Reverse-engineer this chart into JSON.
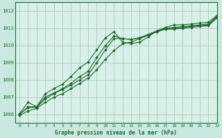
{
  "bg_color": "#c8e8e0",
  "plot_bg_color": "#d8f0e8",
  "grid_color": "#a8ccc4",
  "line_color": "#1a6b2a",
  "xlabel": "Graphe pression niveau de la mer (hPa)",
  "xlim": [
    -0.5,
    23
  ],
  "ylim": [
    1005.5,
    1012.5
  ],
  "yticks": [
    1006,
    1007,
    1008,
    1009,
    1010,
    1011,
    1012
  ],
  "xticks": [
    0,
    1,
    2,
    3,
    4,
    5,
    6,
    7,
    8,
    9,
    10,
    11,
    12,
    13,
    14,
    15,
    16,
    17,
    18,
    19,
    20,
    21,
    22,
    23
  ],
  "line1_x": [
    0,
    1,
    2,
    3,
    4,
    5,
    6,
    7,
    8,
    9,
    10,
    11,
    12,
    13,
    14,
    15,
    16,
    17,
    18,
    19,
    20,
    21,
    22,
    23
  ],
  "line1_y": [
    1006.05,
    1006.7,
    1006.45,
    1007.2,
    1007.5,
    1007.75,
    1008.2,
    1008.7,
    1009.05,
    1009.75,
    1010.45,
    1010.8,
    1010.2,
    1010.1,
    1010.2,
    1010.5,
    1010.85,
    1011.05,
    1011.2,
    1011.2,
    1011.25,
    1011.3,
    1011.35,
    1011.75
  ],
  "line2_x": [
    0,
    1,
    2,
    3,
    4,
    5,
    6,
    7,
    8,
    9,
    10,
    11,
    12,
    13,
    14,
    15,
    16,
    17,
    18,
    19,
    20,
    21,
    22,
    23
  ],
  "line2_y": [
    1006.0,
    1006.45,
    1006.45,
    1007.0,
    1007.25,
    1007.5,
    1007.8,
    1008.2,
    1008.5,
    1009.3,
    1010.0,
    1010.55,
    1010.4,
    1010.35,
    1010.45,
    1010.65,
    1010.85,
    1011.0,
    1011.05,
    1011.1,
    1011.15,
    1011.2,
    1011.25,
    1011.7
  ],
  "line3_x": [
    0,
    1,
    2,
    3,
    4,
    5,
    6,
    7,
    8,
    9,
    10,
    11,
    12,
    13,
    14,
    15,
    16,
    17,
    18,
    19,
    20,
    21,
    22,
    23
  ],
  "line3_y": [
    1006.0,
    1006.4,
    1006.4,
    1006.9,
    1007.2,
    1007.45,
    1007.7,
    1008.0,
    1008.3,
    1009.0,
    1009.75,
    1010.4,
    1010.4,
    1010.35,
    1010.45,
    1010.6,
    1010.8,
    1010.95,
    1011.0,
    1011.05,
    1011.1,
    1011.15,
    1011.2,
    1011.65
  ],
  "line4_x": [
    0,
    1,
    2,
    3,
    4,
    5,
    6,
    7,
    8,
    9,
    10,
    11,
    12,
    13,
    14,
    15,
    16,
    17,
    18,
    19,
    20,
    21,
    22,
    23
  ],
  "line4_y": [
    1005.95,
    1006.2,
    1006.35,
    1006.7,
    1007.0,
    1007.2,
    1007.5,
    1007.8,
    1008.1,
    1008.6,
    1009.2,
    1009.7,
    1010.1,
    1010.2,
    1010.4,
    1010.6,
    1010.8,
    1010.95,
    1010.95,
    1011.0,
    1011.05,
    1011.1,
    1011.15,
    1011.6
  ]
}
